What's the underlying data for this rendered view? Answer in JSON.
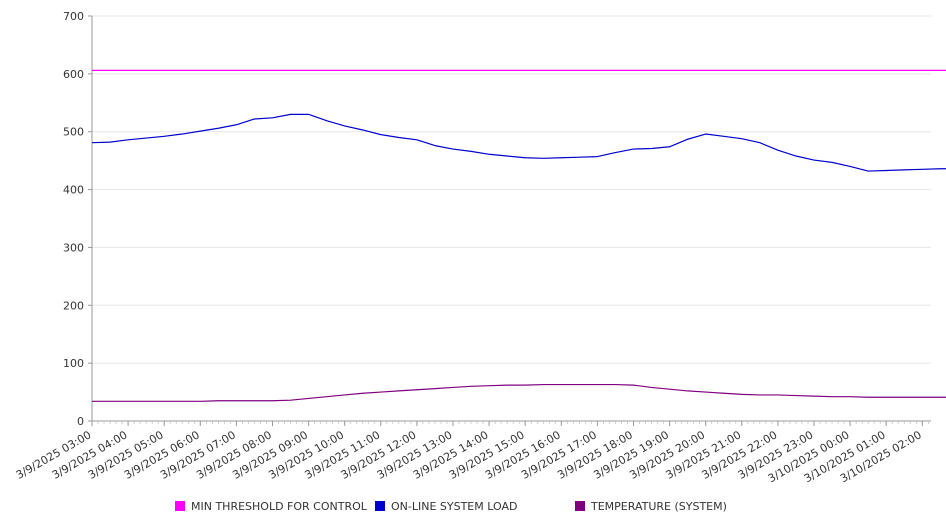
{
  "chart_data": {
    "type": "line",
    "title": "",
    "xlabel": "",
    "ylabel": "",
    "ylim": [
      0,
      700
    ],
    "y_ticks": [
      0,
      100,
      200,
      300,
      400,
      500,
      600,
      700
    ],
    "grid": true,
    "legend_position": "bottom",
    "x_tick_labels": [
      "3/9/2025 03:00",
      "3/9/2025 04:00",
      "3/9/2025 05:00",
      "3/9/2025 06:00",
      "3/9/2025 07:00",
      "3/9/2025 08:00",
      "3/9/2025 09:00",
      "3/9/2025 10:00",
      "3/9/2025 11:00",
      "3/9/2025 12:00",
      "3/9/2025 13:00",
      "3/9/2025 14:00",
      "3/9/2025 15:00",
      "3/9/2025 16:00",
      "3/9/2025 17:00",
      "3/9/2025 18:00",
      "3/9/2025 19:00",
      "3/9/2025 20:00",
      "3/9/2025 21:00",
      "3/9/2025 22:00",
      "3/9/2025 23:00",
      "3/10/2025 00:00",
      "3/10/2025 01:00",
      "3/10/2025 02:00"
    ],
    "x": [
      "3/9/2025 03:00",
      "3/9/2025 03:30",
      "3/9/2025 04:00",
      "3/9/2025 04:30",
      "3/9/2025 05:00",
      "3/9/2025 05:30",
      "3/9/2025 06:00",
      "3/9/2025 06:30",
      "3/9/2025 07:00",
      "3/9/2025 07:30",
      "3/9/2025 08:00",
      "3/9/2025 08:30",
      "3/9/2025 09:00",
      "3/9/2025 09:30",
      "3/9/2025 10:00",
      "3/9/2025 10:30",
      "3/9/2025 11:00",
      "3/9/2025 11:30",
      "3/9/2025 12:00",
      "3/9/2025 12:30",
      "3/9/2025 13:00",
      "3/9/2025 13:30",
      "3/9/2025 14:00",
      "3/9/2025 14:30",
      "3/9/2025 15:00",
      "3/9/2025 15:30",
      "3/9/2025 16:00",
      "3/9/2025 16:30",
      "3/9/2025 17:00",
      "3/9/2025 17:30",
      "3/9/2025 18:00",
      "3/9/2025 18:30",
      "3/9/2025 19:00",
      "3/9/2025 19:30",
      "3/9/2025 20:00",
      "3/9/2025 20:30",
      "3/9/2025 21:00",
      "3/9/2025 21:30",
      "3/9/2025 22:00",
      "3/9/2025 22:30",
      "3/9/2025 23:00",
      "3/9/2025 23:30",
      "3/10/2025 00:00",
      "3/10/2025 00:30",
      "3/10/2025 01:00",
      "3/10/2025 01:30",
      "3/10/2025 02:00",
      "3/10/2025 02:30",
      "3/10/2025 02:45"
    ],
    "series": [
      {
        "name": "MIN THRESHOLD FOR CONTROL",
        "color": "#ff00ff",
        "values": [
          606,
          606,
          606,
          606,
          606,
          606,
          606,
          606,
          606,
          606,
          606,
          606,
          606,
          606,
          606,
          606,
          606,
          606,
          606,
          606,
          606,
          606,
          606,
          606,
          606,
          606,
          606,
          606,
          606,
          606,
          606,
          606,
          606,
          606,
          606,
          606,
          606,
          606,
          606,
          606,
          606,
          606,
          606,
          606,
          606,
          606,
          606,
          606,
          606
        ]
      },
      {
        "name": "ON-LINE SYSTEM LOAD",
        "color": "#0000cc",
        "values": [
          481,
          482,
          486,
          489,
          492,
          496,
          501,
          506,
          512,
          522,
          524,
          530,
          530,
          519,
          510,
          503,
          495,
          490,
          486,
          476,
          470,
          466,
          461,
          458,
          455,
          454,
          455,
          456,
          457,
          464,
          470,
          471,
          474,
          487,
          496,
          492,
          488,
          481,
          468,
          458,
          451,
          447,
          440,
          432,
          433,
          434,
          435,
          436,
          436
        ]
      },
      {
        "name": "TEMPERATURE (SYSTEM)",
        "color": "#800080",
        "values": [
          34,
          34,
          34,
          34,
          34,
          34,
          34,
          35,
          35,
          35,
          35,
          36,
          39,
          42,
          45,
          48,
          50,
          52,
          54,
          56,
          58,
          60,
          61,
          62,
          62,
          63,
          63,
          63,
          63,
          63,
          62,
          58,
          55,
          52,
          50,
          48,
          46,
          45,
          45,
          44,
          43,
          42,
          42,
          41,
          41,
          41,
          41,
          41,
          41
        ]
      }
    ]
  }
}
